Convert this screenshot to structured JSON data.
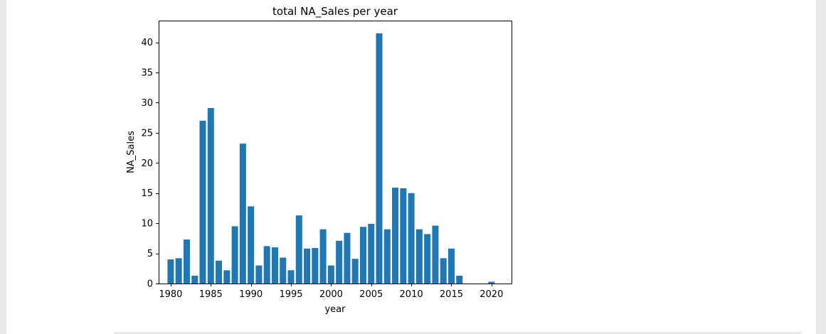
{
  "chart_data": {
    "type": "bar",
    "title": "total NA_Sales per year",
    "xlabel": "year",
    "ylabel": "NA_Sales",
    "x": [
      1980,
      1981,
      1982,
      1983,
      1984,
      1985,
      1986,
      1987,
      1988,
      1989,
      1990,
      1991,
      1992,
      1993,
      1994,
      1995,
      1996,
      1997,
      1998,
      1999,
      2000,
      2001,
      2002,
      2003,
      2004,
      2005,
      2006,
      2007,
      2008,
      2009,
      2010,
      2011,
      2012,
      2013,
      2014,
      2015,
      2016,
      2020
    ],
    "values": [
      4.0,
      4.2,
      7.3,
      1.3,
      27.0,
      29.1,
      3.8,
      2.2,
      9.5,
      23.2,
      12.8,
      3.0,
      6.2,
      6.0,
      4.3,
      2.2,
      11.3,
      5.8,
      5.9,
      9.0,
      3.0,
      7.1,
      8.4,
      4.1,
      9.4,
      9.9,
      41.5,
      9.0,
      15.9,
      15.8,
      15.0,
      9.0,
      8.2,
      9.6,
      4.2,
      5.8,
      1.3,
      0.3
    ],
    "bar_color": "#1f77b4",
    "xlim": [
      1978.5,
      2022.5
    ],
    "ylim": [
      0,
      43.6
    ],
    "x_ticks": [
      1980,
      1985,
      1990,
      1995,
      2000,
      2005,
      2010,
      2015,
      2020
    ],
    "x_tick_labels": [
      "1980",
      "1985",
      "1990",
      "1995",
      "2000",
      "2005",
      "2010",
      "2015",
      "2020"
    ],
    "y_ticks": [
      0,
      5,
      10,
      15,
      20,
      25,
      30,
      35,
      40
    ],
    "y_tick_labels": [
      "0",
      "5",
      "10",
      "15",
      "20",
      "25",
      "30",
      "35",
      "40"
    ],
    "grid": false,
    "legend": "none"
  }
}
